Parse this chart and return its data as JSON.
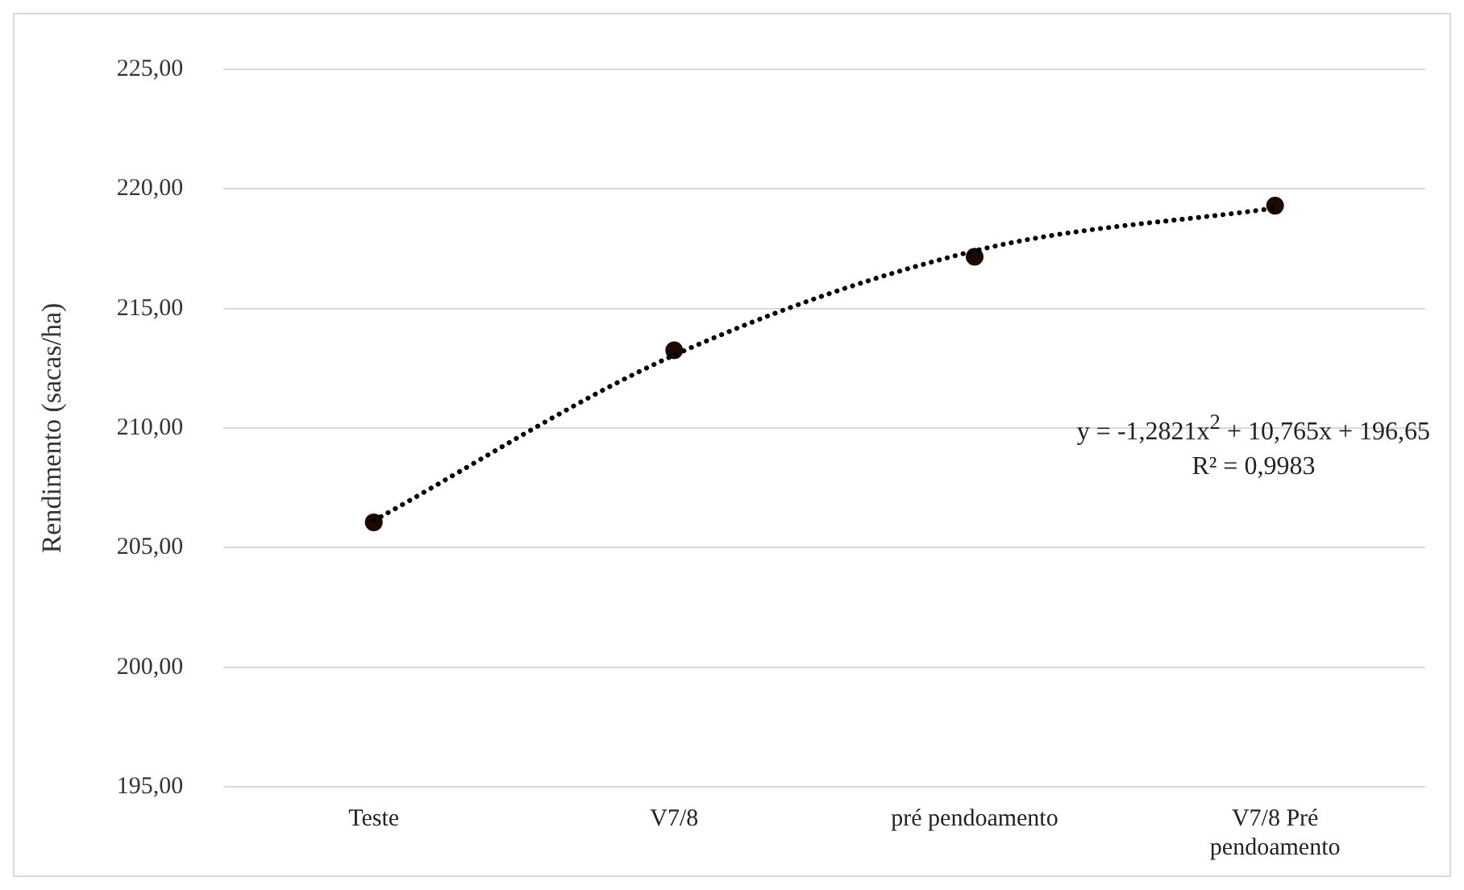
{
  "chart_data": {
    "type": "line",
    "ylabel": "Rendimento (sacas/ha)",
    "categories": [
      "Teste",
      "V7/8",
      "pré pendoamento",
      "V7/8 Pré pendoamento"
    ],
    "series": [
      {
        "type": "scatter",
        "color": "#1a0a00",
        "marker": "circle",
        "values": [
          206.06,
          213.25,
          217.16,
          219.3
        ]
      },
      {
        "type": "line",
        "color": "#000000",
        "marker": "none",
        "line_style": "dotted",
        "values": [
          206.13,
          213.05,
          217.41,
          219.2
        ]
      }
    ],
    "ylim": [
      195,
      225
    ],
    "yticks": [
      {
        "value": 195,
        "label": "195,00"
      },
      {
        "value": 200,
        "label": "200,00"
      },
      {
        "value": 205,
        "label": "205,00"
      },
      {
        "value": 210,
        "label": "210,00"
      },
      {
        "value": 215,
        "label": "215,00"
      },
      {
        "value": 220,
        "label": "220,00"
      },
      {
        "value": 225,
        "label": "225,00"
      }
    ],
    "grid": "y",
    "annotations": [
      "y = -1,2821x$^{2}$  + 10,765x  + 196,65",
      "R² = 0,9983"
    ]
  }
}
